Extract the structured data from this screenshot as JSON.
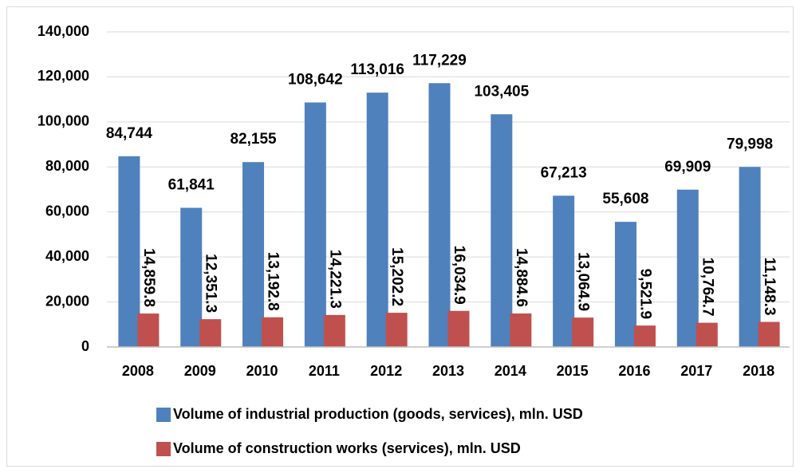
{
  "chart_data": {
    "type": "bar",
    "categories": [
      "2008",
      "2009",
      "2010",
      "2011",
      "2012",
      "2013",
      "2014",
      "2015",
      "2016",
      "2017",
      "2018"
    ],
    "series": [
      {
        "name": "Volume of industrial production (goods, services), mln. USD",
        "color": "#4f81bd",
        "values": [
          84744,
          61841,
          82155,
          108642,
          113016,
          117229,
          103405,
          67213,
          55608,
          69909,
          79998
        ],
        "value_labels": [
          "84,744",
          "61,841",
          "82,155",
          "108,642",
          "113,016",
          "117,229",
          "103,405",
          "67,213",
          "55,608",
          "69,909",
          "79,998"
        ]
      },
      {
        "name": "Volume of construction works (services), mln. USD",
        "color": "#c0504d",
        "values": [
          14859.8,
          12351.3,
          13192.8,
          14221.3,
          15202.2,
          16034.9,
          14884.6,
          13064.9,
          9521.9,
          10764.7,
          11148.3
        ],
        "value_labels": [
          "14,859.8",
          "12,351.3",
          "13,192.8",
          "14,221.3",
          "15,202.2",
          "16,034.9",
          "14,884.6",
          "13,064.9",
          "9,521.9",
          "10,764.7",
          "11,148.3"
        ]
      }
    ],
    "ylim": [
      0,
      140000
    ],
    "yticks": [
      0,
      {
        "value": 20000,
        "label": "20,000"
      },
      {
        "value": 40000,
        "label": "40,000"
      },
      {
        "value": 60000,
        "label": "60,000"
      },
      {
        "value": 80000,
        "label": "80,000"
      },
      {
        "value": 100000,
        "label": "100,000"
      },
      {
        "value": 120000,
        "label": "120,000"
      },
      {
        "value": 140000,
        "label": "140,000"
      }
    ],
    "grid": true
  }
}
